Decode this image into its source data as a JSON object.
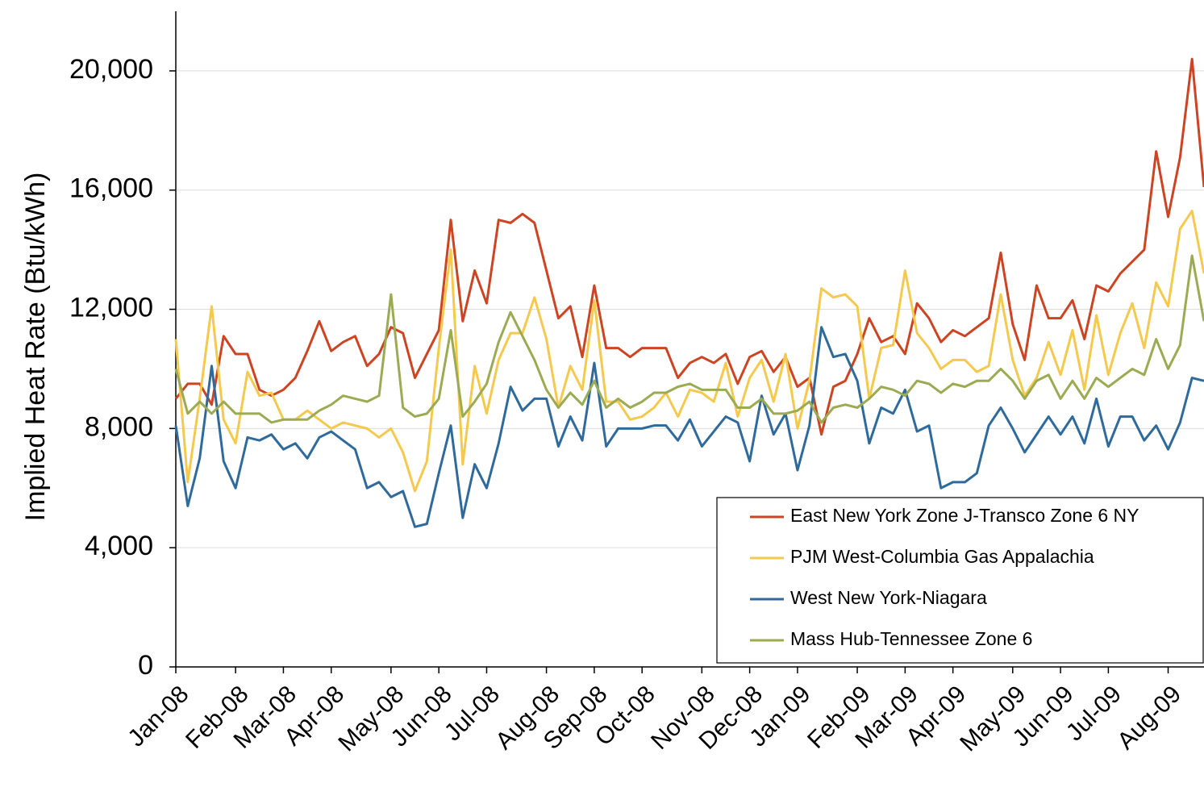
{
  "chart_data": {
    "type": "line",
    "y_label": "Implied Heat Rate (Btu/kWh)",
    "categories": [
      "Jan-08",
      null,
      null,
      null,
      null,
      "Feb-08",
      null,
      null,
      null,
      "Mar-08",
      null,
      null,
      null,
      "Apr-08",
      null,
      null,
      null,
      null,
      "May-08",
      null,
      null,
      null,
      "Jun-08",
      null,
      null,
      null,
      "Jul-08",
      null,
      null,
      null,
      null,
      "Aug-08",
      null,
      null,
      null,
      "Sep-08",
      null,
      null,
      null,
      "Oct-08",
      null,
      null,
      null,
      null,
      "Nov-08",
      null,
      null,
      null,
      "Dec-08",
      null,
      null,
      null,
      "Jan-09",
      null,
      null,
      null,
      null,
      "Feb-09",
      null,
      null,
      null,
      "Mar-09",
      null,
      null,
      null,
      "Apr-09",
      null,
      null,
      null,
      null,
      "May-09",
      null,
      null,
      null,
      "Jun-09",
      null,
      null,
      null,
      "Jul-09",
      null,
      null,
      null,
      null,
      "Aug-09",
      null,
      null,
      null
    ],
    "series": [
      {
        "name": "East New York Zone J-Transco Zone 6 NY",
        "color": "#cc4422",
        "values": [
          9000,
          9500,
          9500,
          8800,
          11100,
          10500,
          10500,
          9300,
          9100,
          9300,
          9700,
          10600,
          11600,
          10600,
          10900,
          11100,
          10100,
          10500,
          11400,
          11200,
          9700,
          10500,
          11300,
          15000,
          11600,
          13300,
          12200,
          15000,
          14900,
          15200,
          14900,
          13300,
          11700,
          12100,
          10400,
          12800,
          10700,
          10700,
          10400,
          10700,
          10700,
          10700,
          9700,
          10200,
          10400,
          10200,
          10500,
          9500,
          10400,
          10600,
          9900,
          10400,
          9400,
          9700,
          7800,
          9400,
          9600,
          10500,
          11700,
          10900,
          11100,
          10500,
          12200,
          11700,
          10900,
          11300,
          11100,
          11400,
          11700,
          13900,
          11500,
          10300,
          12800,
          11700,
          11700,
          12300,
          11000,
          12800,
          12600,
          13200,
          13600,
          14000,
          17300,
          15100,
          17100,
          20400,
          16100
        ]
      },
      {
        "name": "PJM West-Columbia Gas Appalachia",
        "color": "#f5c94e",
        "values": [
          11000,
          6200,
          9000,
          12100,
          8300,
          7500,
          9900,
          9100,
          9200,
          8300,
          8300,
          8600,
          8300,
          8000,
          8200,
          8100,
          8000,
          7700,
          8000,
          7200,
          5900,
          6900,
          10700,
          14000,
          6800,
          10100,
          8500,
          10300,
          11200,
          11200,
          12400,
          11000,
          8700,
          10100,
          9300,
          12300,
          8900,
          8900,
          8300,
          8400,
          8700,
          9200,
          8400,
          9300,
          9200,
          8900,
          10200,
          8400,
          9700,
          10300,
          8900,
          10500,
          8000,
          9600,
          12700,
          12400,
          12500,
          12100,
          9000,
          10700,
          10800,
          13300,
          11200,
          10700,
          10000,
          10300,
          10300,
          9900,
          10100,
          12500,
          10300,
          9100,
          9700,
          10900,
          9800,
          11300,
          9300,
          11800,
          9800,
          11200,
          12200,
          10700,
          12900,
          12100,
          14700,
          15300,
          13200
        ]
      },
      {
        "name": "West New York-Niagara",
        "color": "#2f6a9c",
        "values": [
          8100,
          5400,
          7000,
          10100,
          6900,
          6000,
          7700,
          7600,
          7800,
          7300,
          7500,
          7000,
          7700,
          7900,
          7600,
          7300,
          6000,
          6200,
          5700,
          5900,
          4700,
          4800,
          6500,
          8100,
          5000,
          6800,
          6000,
          7500,
          9400,
          8600,
          9000,
          9000,
          7400,
          8400,
          7600,
          10200,
          7400,
          8000,
          8000,
          8000,
          8100,
          8100,
          7600,
          8300,
          7400,
          7900,
          8400,
          8200,
          6900,
          9100,
          7800,
          8500,
          6600,
          8100,
          11400,
          10400,
          10500,
          9600,
          7500,
          8700,
          8500,
          9300,
          7900,
          8100,
          6000,
          6200,
          6200,
          6500,
          8100,
          8700,
          8000,
          7200,
          7800,
          8400,
          7800,
          8400,
          7500,
          9000,
          7400,
          8400,
          8400,
          7600,
          8100,
          7300,
          8200,
          9700,
          9600
        ]
      },
      {
        "name": "Mass Hub-Tennessee Zone 6",
        "color": "#9bab52",
        "values": [
          10000,
          8500,
          8900,
          8500,
          8900,
          8500,
          8500,
          8500,
          8200,
          8300,
          8300,
          8300,
          8600,
          8800,
          9100,
          9000,
          8900,
          9100,
          12500,
          8700,
          8400,
          8500,
          9000,
          11300,
          8400,
          8900,
          9500,
          10900,
          11900,
          11100,
          10300,
          9300,
          8700,
          9200,
          8800,
          9600,
          8700,
          9000,
          8700,
          8900,
          9200,
          9200,
          9400,
          9500,
          9300,
          9300,
          9300,
          8700,
          8700,
          9000,
          8500,
          8500,
          8600,
          8900,
          8200,
          8700,
          8800,
          8700,
          9000,
          9400,
          9300,
          9100,
          9600,
          9500,
          9200,
          9500,
          9400,
          9600,
          9600,
          10000,
          9600,
          9000,
          9600,
          9800,
          9000,
          9600,
          9000,
          9700,
          9400,
          9700,
          10000,
          9800,
          11000,
          10000,
          10800,
          13800,
          11600
        ]
      }
    ],
    "ylim": [
      0,
      22000
    ],
    "yticks": [
      0,
      {
        "value": 4000,
        "label": "4,000"
      },
      {
        "value": 8000,
        "label": "8,000"
      },
      {
        "value": 12000,
        "label": "12,000"
      },
      {
        "value": 16000,
        "label": "16,000"
      },
      {
        "value": 20000,
        "label": "20,000"
      }
    ],
    "grid": true,
    "legend": "lower-right"
  }
}
